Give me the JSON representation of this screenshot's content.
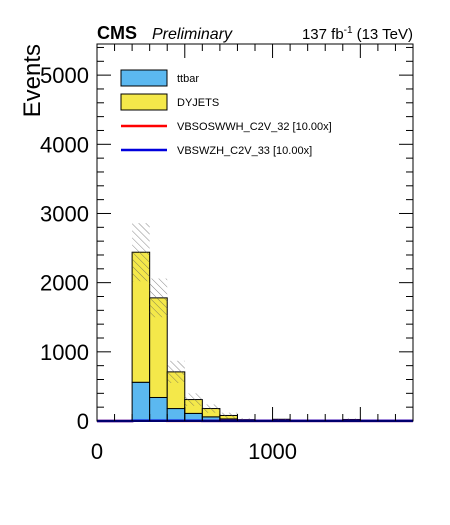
{
  "header": {
    "experiment": "CMS",
    "status": "Preliminary",
    "lumi_value": "137 fb",
    "lumi_exp": "-1",
    "lumi_energy": "(13 TeV)"
  },
  "chart_data": {
    "type": "bar",
    "stacked": true,
    "histogram": true,
    "ylabel": "Events",
    "xlabel": "",
    "xlim": [
      0,
      1800
    ],
    "ylim": [
      0,
      5450
    ],
    "xticks": [
      0,
      1000
    ],
    "yticks": [
      0,
      1000,
      2000,
      3000,
      4000,
      5000
    ],
    "bin_edges": [
      0,
      100,
      200,
      300,
      400,
      500,
      600,
      700,
      800,
      900,
      1000,
      1100,
      1200,
      1300,
      1400,
      1500,
      1600,
      1700,
      1800
    ],
    "series": [
      {
        "name": "ttbar",
        "kind": "fill",
        "color": "#5bb8f0",
        "values": [
          0,
          0,
          560,
          340,
          180,
          110,
          60,
          30,
          15,
          5,
          5,
          3,
          2,
          2,
          2,
          1,
          1,
          0
        ]
      },
      {
        "name": "DYJETS",
        "kind": "fill",
        "color": "#f4e84a",
        "values": [
          0,
          0,
          1880,
          1440,
          530,
          200,
          120,
          50,
          5,
          5,
          20,
          5,
          5,
          5,
          20,
          5,
          0,
          0
        ]
      },
      {
        "name": "VBSOSWWH_C2V_32 [10.00x]",
        "kind": "line",
        "color": "#ff0000",
        "values": [
          0,
          0,
          3,
          3,
          2,
          2,
          1,
          1,
          1,
          1,
          1,
          1,
          1,
          1,
          1,
          1,
          1,
          1
        ]
      },
      {
        "name": "VBSWZH_C2V_33 [10.00x]",
        "kind": "line",
        "color": "#0000dd",
        "values": [
          0,
          0,
          4,
          4,
          3,
          3,
          2,
          2,
          2,
          2,
          2,
          1,
          1,
          1,
          1,
          1,
          1,
          1
        ]
      }
    ],
    "uncertainty": [
      0,
      0,
      420,
      280,
      160,
      90,
      60,
      40,
      20,
      10,
      8,
      6,
      5,
      5,
      15,
      5,
      3,
      2
    ],
    "legend_position": "top-left"
  }
}
